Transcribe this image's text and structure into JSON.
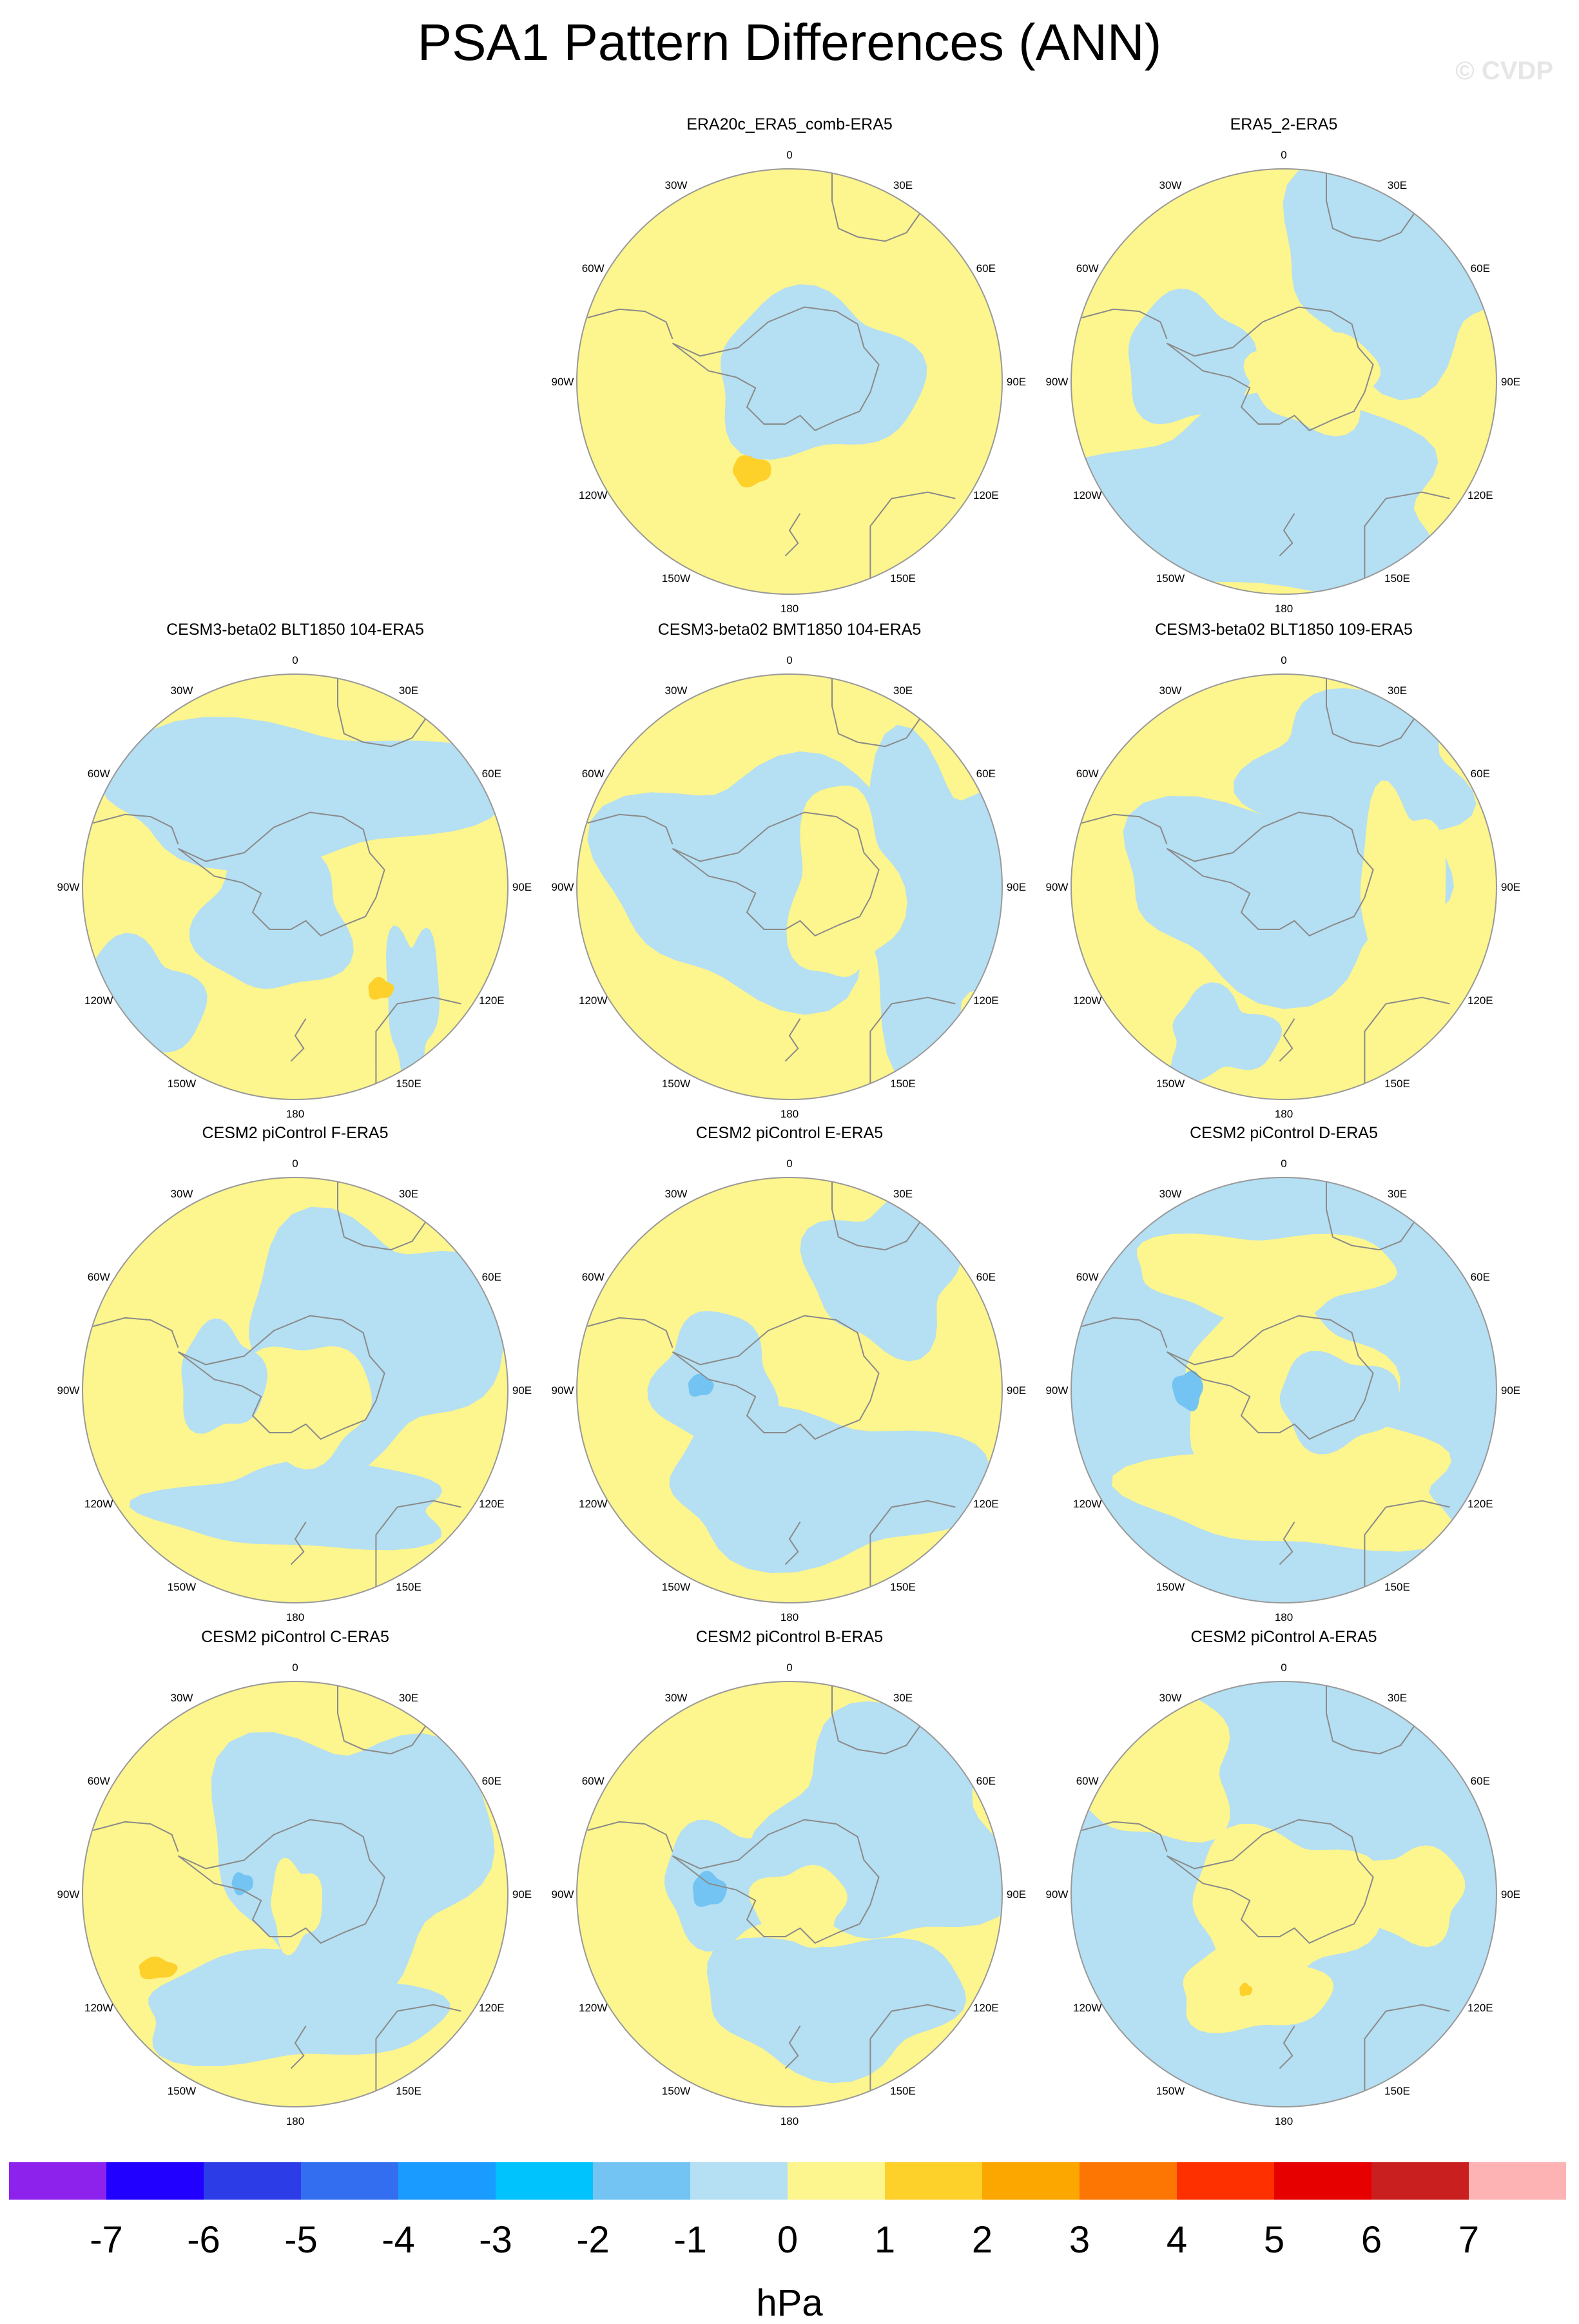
{
  "title": "PSA1 Pattern Differences (ANN)",
  "credit": "© CVDP",
  "units": "hPa",
  "map_labels": [
    "0",
    "30E",
    "60E",
    "90E",
    "120E",
    "150E",
    "180",
    "150W",
    "120W",
    "90W",
    "60W",
    "30W"
  ],
  "colors": {
    "ocean_pos": "#fdf58e",
    "ocean_neg": "#b5dff2",
    "mid_pos": "#fdd02a",
    "mid_neg": "#73c4f2",
    "coast": "#8a8a8a",
    "rim": "#999999"
  },
  "colorbar": {
    "colors": [
      "#8e22ed",
      "#2100ff",
      "#2c3ce6",
      "#336ef0",
      "#1a9bff",
      "#00c3fd",
      "#73c4f2",
      "#b5dff2",
      "#fdf58e",
      "#fdd02a",
      "#fca600",
      "#fd7502",
      "#fe3000",
      "#e60000",
      "#ca1f1f",
      "#fdb3b3"
    ],
    "labels": [
      "-7",
      "-6",
      "-5",
      "-4",
      "-3",
      "-2",
      "-1",
      "0",
      "1",
      "2",
      "3",
      "4",
      "5",
      "6",
      "7"
    ]
  },
  "chart_data": {
    "type": "map",
    "projection": "south polar stereographic",
    "variable": "PSA1 Pattern Differences (ANN)",
    "units": "hPa",
    "color_levels": [
      -7,
      -6,
      -5,
      -4,
      -3,
      -2,
      -1,
      0,
      1,
      2,
      3,
      4,
      5,
      6,
      7
    ],
    "panels": [
      {
        "title": "ERA20c_ERA5_comb-ERA5",
        "base": "pos",
        "range": [
          -1,
          2
        ]
      },
      {
        "title": "ERA5_2-ERA5",
        "base": "pos",
        "range": [
          -1,
          1
        ]
      },
      {
        "title": "CESM3-beta02 BLT1850 104-ERA5",
        "base": "pos",
        "range": [
          -1,
          2
        ]
      },
      {
        "title": "CESM3-beta02 BMT1850 104-ERA5",
        "base": "pos",
        "range": [
          -1,
          1
        ]
      },
      {
        "title": "CESM3-beta02 BLT1850 109-ERA5",
        "base": "pos",
        "range": [
          -1,
          1
        ]
      },
      {
        "title": "CESM2 piControl F-ERA5",
        "base": "pos",
        "range": [
          -1,
          1
        ]
      },
      {
        "title": "CESM2 piControl E-ERA5",
        "base": "pos",
        "range": [
          -2,
          1
        ]
      },
      {
        "title": "CESM2 piControl D-ERA5",
        "base": "neg",
        "range": [
          -2,
          1
        ]
      },
      {
        "title": "CESM2 piControl C-ERA5",
        "base": "pos",
        "range": [
          -2,
          2
        ]
      },
      {
        "title": "CESM2 piControl B-ERA5",
        "base": "pos",
        "range": [
          -2,
          1
        ]
      },
      {
        "title": "CESM2 piControl A-ERA5",
        "base": "neg",
        "range": [
          -1,
          2
        ]
      }
    ]
  }
}
